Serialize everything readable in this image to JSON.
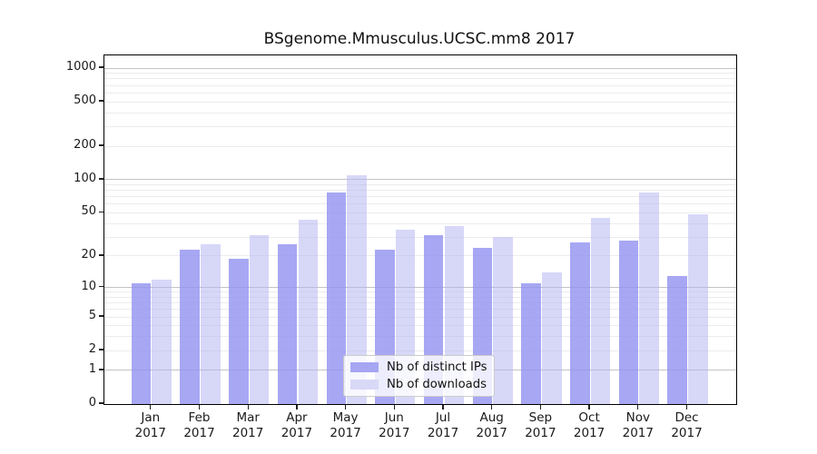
{
  "figure": {
    "title": "BSgenome.Mmusculus.UCSC.mm8 2017"
  },
  "chart_data": {
    "type": "bar",
    "title": "BSgenome.Mmusculus.UCSC.mm8 2017",
    "y_scale": "log1p",
    "ylim": [
      0,
      1300
    ],
    "y_ticks": [
      0,
      1,
      2,
      5,
      10,
      20,
      50,
      100,
      200,
      500,
      1000
    ],
    "categories": [
      "Jan",
      "Feb",
      "Mar",
      "Apr",
      "May",
      "Jun",
      "Jul",
      "Aug",
      "Sep",
      "Oct",
      "Nov",
      "Dec"
    ],
    "year": "2017",
    "series": [
      {
        "name": "Nb of distinct IPs",
        "color": "#a6a6f2",
        "fill": "rgba(148,148,241,0.82)",
        "values": [
          11,
          23,
          19,
          26,
          77,
          23,
          31,
          24,
          11,
          27,
          28,
          13
        ]
      },
      {
        "name": "Nb of downloads",
        "color": "#d8d8f7",
        "fill": "rgba(178,178,242,0.52)",
        "values": [
          12,
          26,
          31,
          43,
          110,
          35,
          38,
          30,
          14,
          45,
          77,
          49
        ]
      }
    ],
    "legend": {
      "position": "lower center",
      "items": [
        "Nb of distinct IPs",
        "Nb of downloads"
      ]
    },
    "grid": {
      "major_color": "#c4c4c4",
      "minor_color": "#ececec"
    },
    "axis_color": "#000000"
  }
}
